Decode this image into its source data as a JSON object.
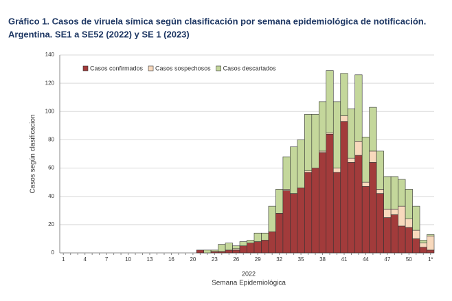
{
  "chart_data": {
    "type": "stacked_bar",
    "title": [
      "Gráfico 1. Casos de viruela símica según clasificación por semana epidemiológica de notificación.",
      "Argentina. SE1 a SE52 (2022) y SE 1 (2023)"
    ],
    "ylabel": "Casos según clasificacion",
    "xlabel": [
      "2022",
      "Semana Epidemiológica"
    ],
    "categories": [
      "1",
      null,
      null,
      "4",
      null,
      null,
      "7",
      null,
      null,
      "10",
      null,
      null,
      "13",
      null,
      null,
      "16",
      null,
      null,
      "20",
      null,
      null,
      "23",
      null,
      null,
      "26",
      null,
      null,
      "29",
      null,
      null,
      "32",
      null,
      null,
      "35",
      null,
      null,
      "38",
      null,
      null,
      "41",
      null,
      null,
      "44",
      null,
      null,
      "47",
      null,
      null,
      "50",
      null,
      null,
      "1*"
    ],
    "series": [
      {
        "name": "Casos confirmados",
        "color": "#a23b3b",
        "values": [
          0,
          0,
          0,
          0,
          0,
          0,
          0,
          0,
          0,
          0,
          0,
          0,
          0,
          0,
          0,
          0,
          0,
          0,
          0,
          2,
          0,
          1,
          1,
          2,
          2,
          5,
          7,
          8,
          9,
          15,
          28,
          44,
          42,
          46,
          57,
          60,
          71,
          84,
          57,
          93,
          64,
          69,
          47,
          64,
          42,
          25,
          27,
          19,
          18,
          10,
          4,
          2
        ]
      },
      {
        "name": "Casos sospechosos",
        "color": "#f8d9bd",
        "values": [
          0,
          0,
          0,
          0,
          0,
          0,
          0,
          0,
          0,
          0,
          0,
          0,
          0,
          0,
          0,
          0,
          0,
          0,
          0,
          0,
          0,
          0,
          0,
          0,
          1,
          0,
          0,
          0,
          0,
          0,
          0,
          1,
          0,
          0,
          1,
          0,
          1,
          1,
          3,
          4,
          3,
          10,
          3,
          8,
          3,
          6,
          4,
          14,
          6,
          6,
          3,
          10
        ]
      },
      {
        "name": "Casos descartados",
        "color": "#c4d79b",
        "values": [
          0,
          0,
          0,
          0,
          0,
          0,
          0,
          0,
          0,
          0,
          0,
          0,
          0,
          0,
          0,
          0,
          0,
          0,
          0,
          0,
          2,
          1,
          5,
          5,
          2,
          3,
          2,
          6,
          5,
          18,
          17,
          23,
          33,
          34,
          40,
          38,
          35,
          44,
          47,
          30,
          35,
          47,
          32,
          31,
          27,
          23,
          23,
          19,
          21,
          17,
          2,
          1
        ]
      }
    ],
    "ylim": [
      0,
      140
    ],
    "yticks": [
      0,
      20,
      40,
      60,
      80,
      100,
      120,
      140
    ],
    "grid": true,
    "legend": "top-left"
  }
}
